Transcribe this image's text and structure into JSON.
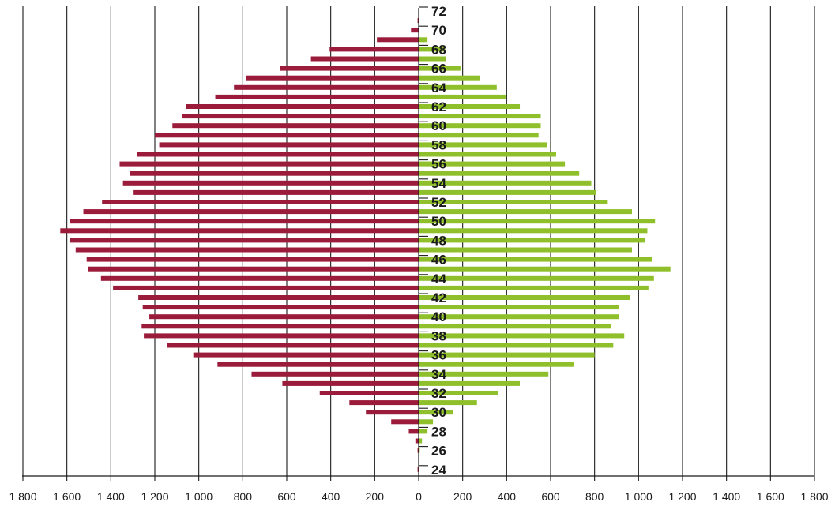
{
  "chart_data": {
    "type": "bar",
    "orientation": "horizontal",
    "layout": "population-pyramid",
    "x_ticks": [
      "1 800",
      "1 600",
      "1 400",
      "1 200",
      "1 000",
      "800",
      "600",
      "400",
      "200",
      "0",
      "200",
      "400",
      "600",
      "800",
      "1 000",
      "1 200",
      "1 400",
      "1 600",
      "1 800"
    ],
    "xlim": [
      -1800,
      1800
    ],
    "grid": true,
    "age_labels": [
      "72",
      "70",
      "68",
      "66",
      "64",
      "62",
      "60",
      "58",
      "56",
      "54",
      "52",
      "50",
      "48",
      "46",
      "44",
      "42",
      "40",
      "38",
      "36",
      "34",
      "32",
      "30",
      "28",
      "26",
      "24"
    ],
    "ages": [
      72,
      71,
      70,
      69,
      68,
      67,
      66,
      65,
      64,
      63,
      62,
      61,
      60,
      59,
      58,
      57,
      56,
      55,
      54,
      53,
      52,
      51,
      50,
      49,
      48,
      47,
      46,
      45,
      44,
      43,
      42,
      41,
      40,
      39,
      38,
      37,
      36,
      35,
      34,
      33,
      32,
      31,
      30,
      29,
      28,
      27,
      26,
      25,
      24
    ],
    "series": [
      {
        "color": "#9b1b3a",
        "side": "left",
        "values": [
          0,
          5,
          35,
          190,
          405,
          490,
          630,
          785,
          840,
          925,
          1060,
          1075,
          1120,
          1200,
          1180,
          1280,
          1360,
          1315,
          1345,
          1300,
          1440,
          1525,
          1585,
          1630,
          1585,
          1560,
          1510,
          1505,
          1445,
          1390,
          1275,
          1255,
          1225,
          1260,
          1250,
          1145,
          1025,
          915,
          760,
          620,
          450,
          315,
          240,
          125,
          45,
          15,
          5,
          0,
          5
        ]
      },
      {
        "color": "#8fbf2a",
        "side": "right",
        "values": [
          0,
          0,
          0,
          40,
          120,
          125,
          190,
          280,
          355,
          395,
          460,
          555,
          555,
          545,
          585,
          625,
          665,
          730,
          785,
          805,
          860,
          970,
          1075,
          1040,
          1030,
          970,
          1060,
          1145,
          1070,
          1045,
          960,
          910,
          910,
          875,
          935,
          885,
          800,
          705,
          590,
          460,
          360,
          265,
          155,
          65,
          40,
          15,
          5,
          0,
          0
        ]
      }
    ]
  }
}
